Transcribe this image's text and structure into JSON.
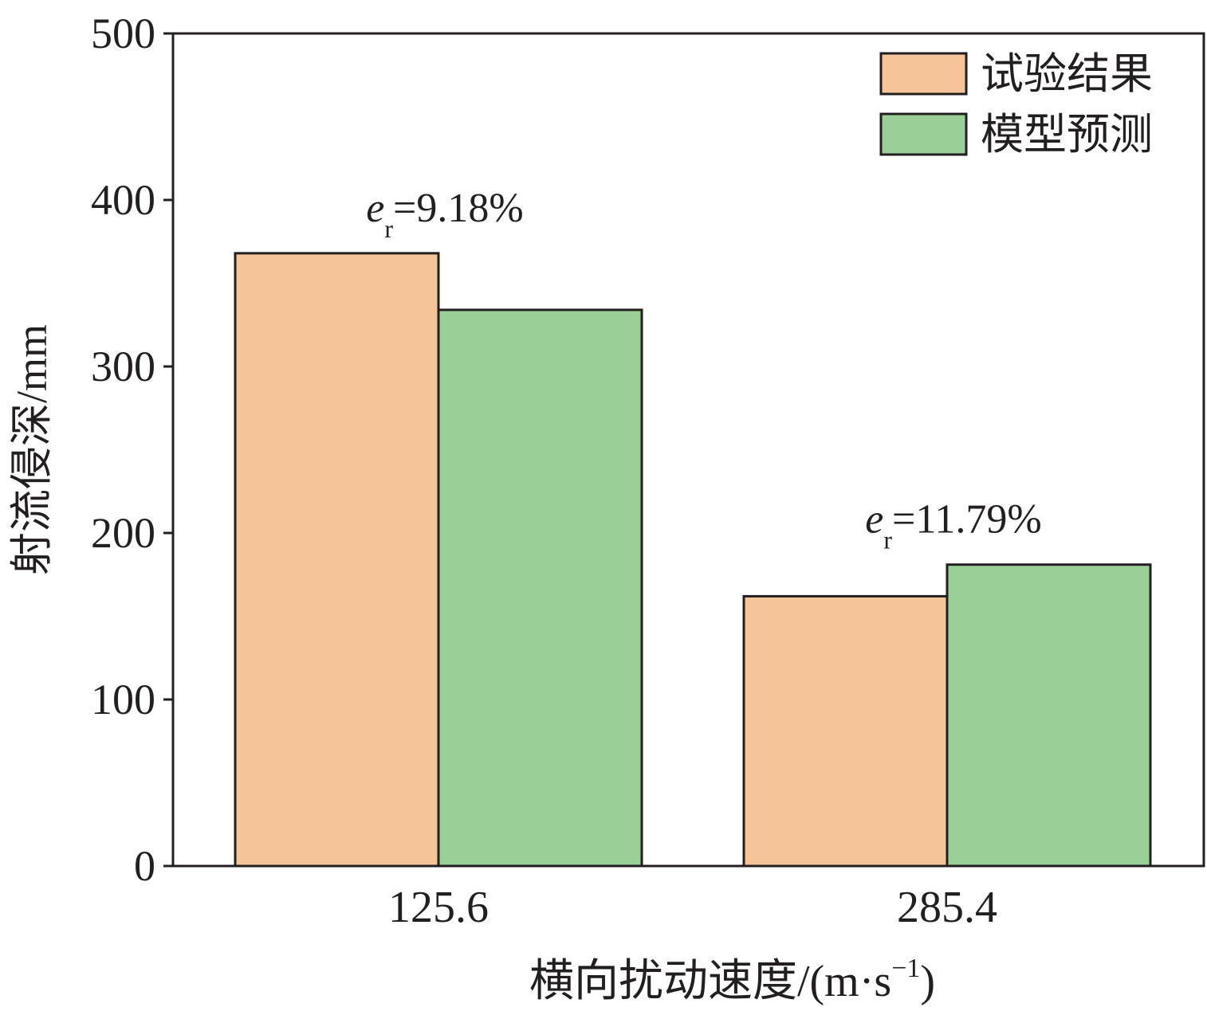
{
  "chart_data": {
    "type": "bar",
    "xlabel": {
      "text": "横向扰动速度/(m·s",
      "superscript": "−1",
      "suffix": ")"
    },
    "ylabel": "射流侵深/mm",
    "categories": [
      "125.6",
      "285.4"
    ],
    "series": [
      {
        "name": "试验结果",
        "color": "#f5c498",
        "values": [
          368,
          162
        ]
      },
      {
        "name": "模型预测",
        "color": "#9bcf98",
        "values": [
          334,
          181
        ]
      }
    ],
    "annotations": [
      {
        "symbol": "e",
        "subscript": "r",
        "text": "=9.18%"
      },
      {
        "symbol": "e",
        "subscript": "r",
        "text": "=11.79%"
      }
    ],
    "ylim": [
      0,
      500
    ],
    "yticks": [
      0,
      100,
      200,
      300,
      400,
      500
    ],
    "legend": "upper-right",
    "edgecolor": "#231f20"
  }
}
